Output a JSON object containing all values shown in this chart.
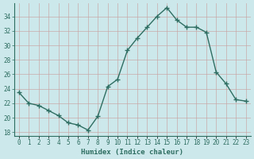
{
  "x": [
    0,
    1,
    2,
    3,
    4,
    5,
    6,
    7,
    8,
    9,
    10,
    11,
    12,
    13,
    14,
    15,
    16,
    17,
    18,
    19,
    20,
    21,
    22,
    23
  ],
  "y": [
    23.5,
    22.0,
    21.7,
    21.0,
    20.3,
    19.3,
    19.0,
    18.3,
    20.2,
    24.3,
    25.3,
    29.3,
    31.0,
    32.5,
    34.0,
    35.2,
    33.5,
    32.5,
    32.5,
    31.8,
    26.3,
    24.7,
    22.5,
    22.3
  ],
  "line_color": "#2e6e62",
  "marker": "+",
  "marker_size": 4,
  "marker_lw": 1.0,
  "line_width": 1.0,
  "bg_color": "#cde8ea",
  "grid_color": "#c8a0a0",
  "grid_alpha": 0.7,
  "xlabel": "Humidex (Indice chaleur)",
  "xlabel_color": "#2e6e62",
  "ylim": [
    17.5,
    35.8
  ],
  "xlim": [
    -0.5,
    23.5
  ],
  "yticks": [
    18,
    20,
    22,
    24,
    26,
    28,
    30,
    32,
    34
  ],
  "xtick_labels": [
    "0",
    "1",
    "2",
    "3",
    "4",
    "5",
    "6",
    "7",
    "8",
    "9",
    "10",
    "11",
    "12",
    "13",
    "14",
    "15",
    "16",
    "17",
    "18",
    "19",
    "20",
    "21",
    "22",
    "23"
  ],
  "tick_fontsize": 5.5,
  "xlabel_fontsize": 6.5
}
